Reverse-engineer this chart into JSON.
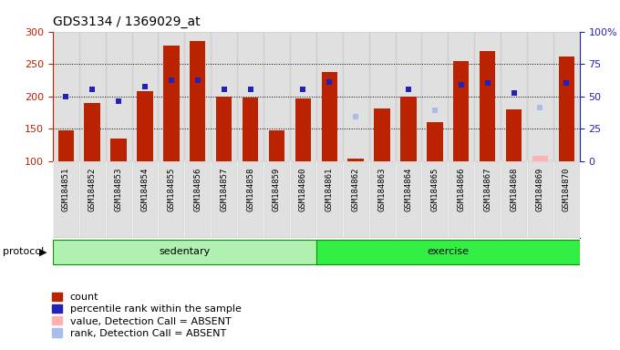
{
  "title": "GDS3134 / 1369029_at",
  "samples": [
    "GSM184851",
    "GSM184852",
    "GSM184853",
    "GSM184854",
    "GSM184855",
    "GSM184856",
    "GSM184857",
    "GSM184858",
    "GSM184859",
    "GSM184860",
    "GSM184861",
    "GSM184862",
    "GSM184863",
    "GSM184864",
    "GSM184865",
    "GSM184866",
    "GSM184867",
    "GSM184868",
    "GSM184869",
    "GSM184870"
  ],
  "red_bars": [
    147,
    190,
    135,
    208,
    278,
    285,
    200,
    198,
    147,
    197,
    238,
    104,
    181,
    200,
    160,
    255,
    270,
    180,
    103,
    262
  ],
  "blue_squares": [
    200,
    210,
    193,
    215,
    225,
    225,
    211,
    211,
    null,
    211,
    222,
    null,
    null,
    210,
    null,
    218,
    221,
    205,
    null,
    221
  ],
  "absent_value_bars": [
    null,
    null,
    null,
    null,
    null,
    null,
    null,
    null,
    null,
    null,
    null,
    null,
    null,
    null,
    null,
    null,
    null,
    null,
    108,
    null
  ],
  "absent_rank_squares": [
    null,
    null,
    null,
    null,
    null,
    null,
    null,
    null,
    null,
    null,
    null,
    168,
    null,
    null,
    178,
    null,
    null,
    null,
    183,
    null
  ],
  "ylim_left": [
    100,
    300
  ],
  "yticks_left": [
    100,
    150,
    200,
    250,
    300
  ],
  "yticks_right": [
    0,
    25,
    50,
    75,
    100
  ],
  "bar_color": "#bb2200",
  "blue_color": "#2222bb",
  "absent_val_color": "#ffb0b0",
  "absent_rank_color": "#aabbee",
  "col_bg_color": "#cccccc",
  "sedentary_color": "#b0f0b0",
  "exercise_color": "#33ee44",
  "sedentary_label": "sedentary",
  "exercise_label": "exercise",
  "protocol_label": "protocol",
  "legend_labels": [
    "count",
    "percentile rank within the sample",
    "value, Detection Call = ABSENT",
    "rank, Detection Call = ABSENT"
  ]
}
